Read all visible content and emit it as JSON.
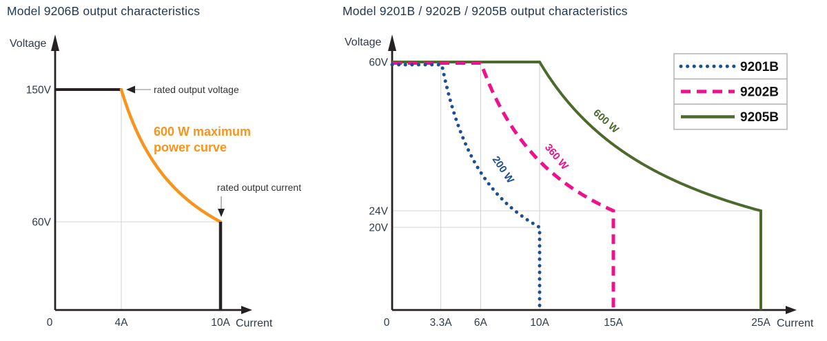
{
  "chart_data": [
    {
      "type": "line",
      "title": "Model 9206B output characteristics",
      "xlabel": "Current",
      "ylabel": "Voltage",
      "x_unit": "A",
      "y_unit": "V",
      "xlim": [
        0,
        11.6
      ],
      "ylim": [
        0,
        180
      ],
      "grid": true,
      "xticks": [
        {
          "v": 0,
          "label": "0"
        },
        {
          "v": 4,
          "label": "4A"
        },
        {
          "v": 10,
          "label": "10A"
        }
      ],
      "yticks": [
        {
          "v": 60,
          "label": "60V"
        },
        {
          "v": 150,
          "label": "150V"
        }
      ],
      "gridlines": {
        "vertical": [
          {
            "x": 4,
            "v_to": 150
          }
        ],
        "horizontal": [
          {
            "y": 60,
            "i_to": 10
          }
        ]
      },
      "series": [
        {
          "name": "9206B output envelope",
          "max_voltage_v": 150,
          "knee_current_a": 4,
          "power_w": 600,
          "min_voltage_v": 60,
          "rated_current_a": 10,
          "cv_line_color": "#262223",
          "power_curve_color": "#f7941d",
          "cc_line_color": "#262223"
        }
      ],
      "annotations": {
        "rated_voltage_text": "rated output voltage",
        "rated_current_text": "rated output current",
        "power_label_lines": [
          "600 W maximum",
          "power curve"
        ],
        "power_label_color": "#f7941d"
      }
    },
    {
      "type": "line",
      "title": "Model 9201B / 9202B / 9205B output characteristics",
      "xlabel": "Current",
      "ylabel": "Voltage",
      "x_unit": "A",
      "y_unit": "V",
      "xlim": [
        0,
        27
      ],
      "ylim": [
        0,
        63
      ],
      "grid": true,
      "xticks": [
        {
          "v": 0,
          "label": "0"
        },
        {
          "v": 3.3,
          "label": "3.3A"
        },
        {
          "v": 6,
          "label": "6A"
        },
        {
          "v": 10,
          "label": "10A"
        },
        {
          "v": 15,
          "label": "15A"
        },
        {
          "v": 25,
          "label": "25A"
        }
      ],
      "yticks": [
        {
          "v": 20,
          "label": "20V"
        },
        {
          "v": 24,
          "label": "24V"
        },
        {
          "v": 60,
          "label": "60V"
        }
      ],
      "gridlines": {
        "vertical": [
          {
            "x": 3.3,
            "v_to": 60
          },
          {
            "x": 6,
            "v_to": 60
          },
          {
            "x": 10,
            "v_to": 60
          }
        ],
        "horizontal": [
          {
            "y": 20,
            "i_to": 10
          },
          {
            "y": 24,
            "i_to": 25
          }
        ]
      },
      "series": [
        {
          "name": "9201B",
          "style": "dotted",
          "color": "#1d4f94",
          "power_w": 200,
          "curve_label": "200 W",
          "max_voltage_v": 60,
          "knee_current_a": 3.3,
          "min_voltage_v": 20,
          "rated_current_a": 10
        },
        {
          "name": "9202B",
          "style": "dashed",
          "color": "#ef108c",
          "power_w": 360,
          "curve_label": "360 W",
          "max_voltage_v": 60,
          "knee_current_a": 6,
          "min_voltage_v": 24,
          "rated_current_a": 15
        },
        {
          "name": "9205B",
          "style": "solid",
          "color": "#4d6a2d",
          "power_w": 600,
          "curve_label": "600 W",
          "max_voltage_v": 60,
          "knee_current_a": 10,
          "min_voltage_v": 24,
          "rated_current_a": 25
        }
      ],
      "legend": {
        "position": "top-right",
        "entries": [
          {
            "label": "9201B"
          },
          {
            "label": "9202B"
          },
          {
            "label": "9205B"
          }
        ]
      }
    }
  ],
  "colors": {
    "title_text": "#203850",
    "tick_text": "#2d3a47",
    "annotation_text": "#333333",
    "axis": "#262223",
    "gridline": "#d3d3d3",
    "legend_border": "#b3b3b3",
    "legend_fill": "#ffffff"
  }
}
